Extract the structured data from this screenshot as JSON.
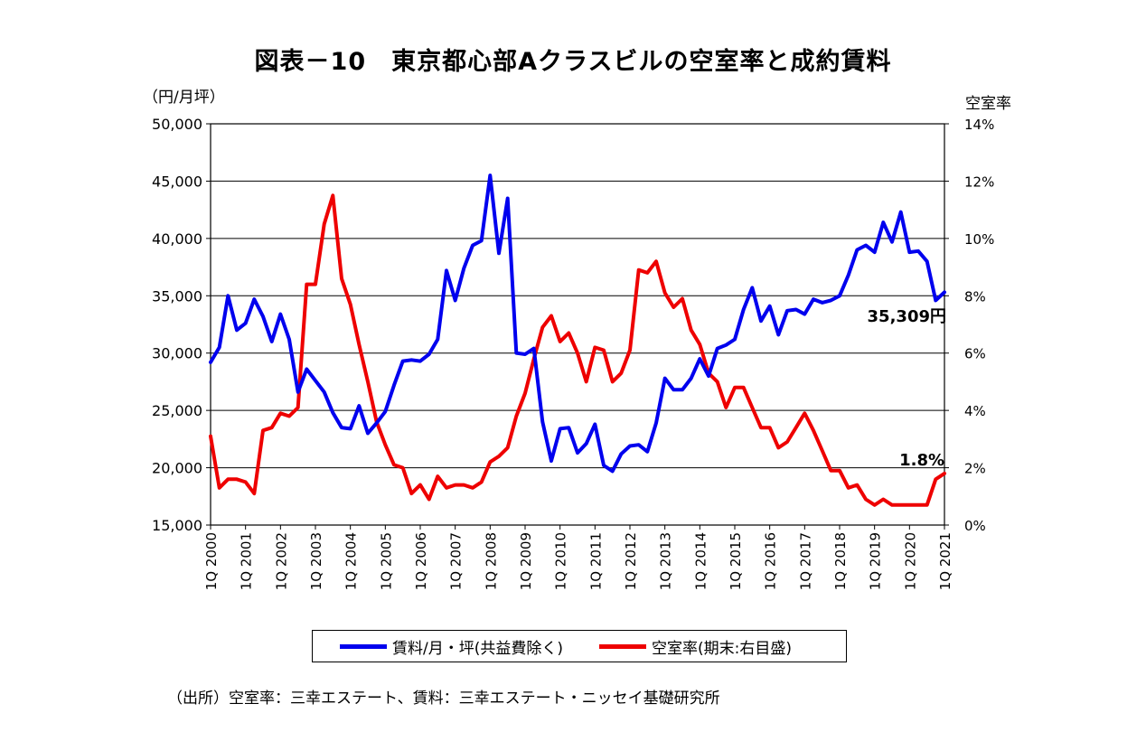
{
  "title": "図表－10　東京都心部Aクラスビルの空室率と成約賃料",
  "left_unit": "（円/月坪）",
  "right_unit": "空室率",
  "source": "（出所）空室率：三幸エステート、賃料：三幸エステート・ニッセイ基礎研究所",
  "colors": {
    "rent": "#0000ee",
    "vacancy": "#ee0000"
  },
  "annotations": {
    "rent_last": "35,309円",
    "vacancy_last": "1.8%"
  },
  "chart_data": {
    "type": "line",
    "x_tick_labels": [
      "1Q 2000",
      "1Q 2001",
      "1Q 2002",
      "1Q 2003",
      "1Q 2004",
      "1Q 2005",
      "1Q 2006",
      "1Q 2007",
      "1Q 2008",
      "1Q 2009",
      "1Q 2010",
      "1Q 2011",
      "1Q 2012",
      "1Q 2013",
      "1Q 2014",
      "1Q 2015",
      "1Q 2016",
      "1Q 2017",
      "1Q 2018",
      "1Q 2019",
      "1Q 2020",
      "1Q 2021"
    ],
    "y_left": {
      "min": 15000,
      "max": 50000,
      "ticks": [
        "15,000",
        "20,000",
        "25,000",
        "30,000",
        "35,000",
        "40,000",
        "45,000",
        "50,000"
      ]
    },
    "y_right": {
      "min": 0,
      "max": 14,
      "ticks": [
        "0%",
        "2%",
        "4%",
        "6%",
        "8%",
        "10%",
        "12%",
        "14%"
      ]
    },
    "grid": "horizontal",
    "legend_position": "bottom",
    "series": [
      {
        "name": "賃料/月・坪(共益費除く)",
        "axis": "left",
        "values": [
          29200,
          30500,
          35000,
          32000,
          32600,
          34700,
          33200,
          31000,
          33400,
          31200,
          26600,
          28600,
          27600,
          26600,
          24800,
          23500,
          23400,
          25400,
          23000,
          23900,
          24900,
          27200,
          29300,
          29400,
          29300,
          29900,
          31200,
          37200,
          34600,
          37400,
          39400,
          39800,
          45500,
          38700,
          43500,
          30000,
          29900,
          30400,
          24000,
          20600,
          23400,
          23500,
          21300,
          22100,
          23800,
          20200,
          19700,
          21200,
          21900,
          22000,
          21400,
          23900,
          27800,
          26800,
          26800,
          27800,
          29500,
          28000,
          30400,
          30700,
          31200,
          33800,
          35700,
          32800,
          34100,
          31600,
          33700,
          33800,
          33400,
          34700,
          34400,
          34600,
          35000,
          36800,
          39000,
          39400,
          38800,
          41400,
          39700,
          42300,
          38800,
          38900,
          38000,
          34600,
          35309
        ]
      },
      {
        "name": "空室率(期末:右目盛)",
        "axis": "right",
        "values": [
          3.1,
          1.3,
          1.6,
          1.6,
          1.5,
          1.1,
          3.3,
          3.4,
          3.9,
          3.8,
          4.1,
          8.4,
          8.4,
          10.5,
          11.5,
          8.6,
          7.7,
          6.3,
          5.0,
          3.6,
          2.8,
          2.1,
          2.0,
          1.1,
          1.4,
          0.9,
          1.7,
          1.3,
          1.4,
          1.4,
          1.3,
          1.5,
          2.2,
          2.4,
          2.7,
          3.8,
          4.6,
          5.8,
          6.9,
          7.3,
          6.4,
          6.7,
          6.0,
          5.0,
          6.2,
          6.1,
          5.0,
          5.3,
          6.1,
          8.9,
          8.8,
          9.2,
          8.1,
          7.6,
          7.9,
          6.8,
          6.3,
          5.3,
          5.0,
          4.1,
          4.8,
          4.8,
          4.1,
          3.4,
          3.4,
          2.7,
          2.9,
          3.4,
          3.9,
          3.3,
          2.6,
          1.9,
          1.9,
          1.3,
          1.4,
          0.9,
          0.7,
          0.9,
          0.7,
          0.7,
          0.7,
          0.7,
          0.7,
          1.6,
          1.8
        ]
      }
    ]
  }
}
